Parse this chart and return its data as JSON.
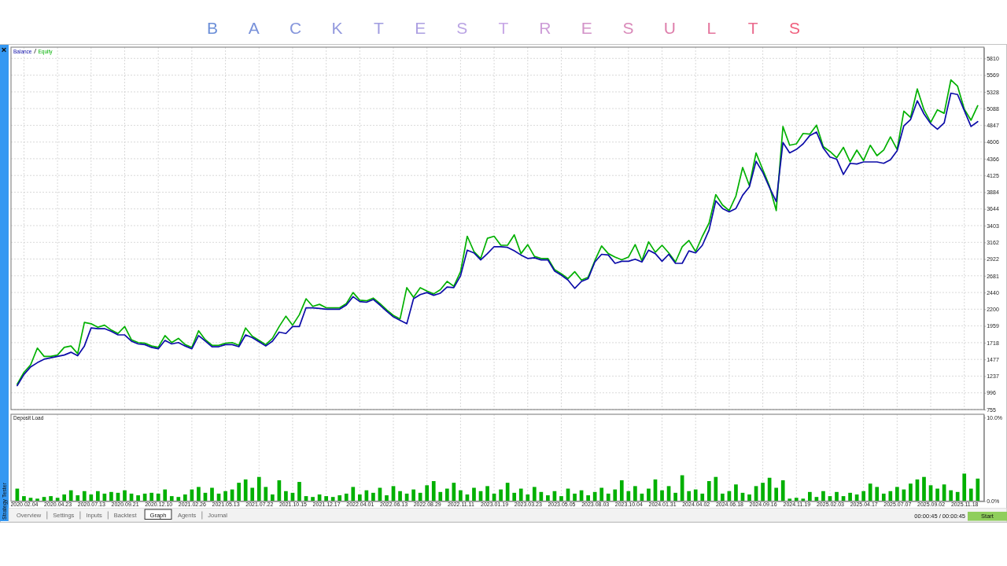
{
  "chart_data": [
    {
      "type": "line",
      "title": "B A C K T E S T R E S U L T S",
      "legend": "top left",
      "grid": true,
      "tick_labels": "y",
      "ylim": [
        755,
        5972
      ],
      "yticks": [
        755,
        996,
        1237,
        1477,
        1718,
        1959,
        2200,
        2440,
        2681,
        2922,
        3162,
        3403,
        3644,
        3884,
        4125,
        4366,
        4606,
        4847,
        5088,
        5328,
        5569,
        5810
      ],
      "categories": [
        null,
        "2020.02.04",
        null,
        null,
        null,
        null,
        "2020.04.23",
        null,
        null,
        null,
        null,
        "2020.07.13",
        null,
        null,
        null,
        null,
        "2020.09.21",
        null,
        null,
        null,
        null,
        "2020.12.10",
        null,
        null,
        null,
        null,
        "2021.02.26",
        null,
        null,
        null,
        null,
        "2021.05.13",
        null,
        null,
        null,
        null,
        "2021.07.22",
        null,
        null,
        null,
        null,
        "2021.10.15",
        null,
        null,
        null,
        null,
        "2021.12.17",
        null,
        null,
        null,
        null,
        "2022.04.01",
        null,
        null,
        null,
        null,
        "2022.06.13",
        null,
        null,
        null,
        null,
        "2022.08.29",
        null,
        null,
        null,
        null,
        "2022.11.11",
        null,
        null,
        null,
        null,
        "2023.01.19",
        null,
        null,
        null,
        null,
        "2023.03.23",
        null,
        null,
        null,
        null,
        "2023.05.05",
        null,
        null,
        null,
        null,
        "2023.08.03",
        null,
        null,
        null,
        null,
        "2023.10.04",
        null,
        null,
        null,
        null,
        "2024.01.31",
        null,
        null,
        null,
        null,
        "2024.04.02",
        null,
        null,
        null,
        null,
        "2024.06.18",
        null,
        null,
        null,
        null,
        "2024.09.16",
        null,
        null,
        null,
        null,
        "2024.11.19",
        null,
        null,
        null,
        null,
        "2025.02.03",
        null,
        null,
        null,
        null,
        "2025.04.17",
        null,
        null,
        null,
        null,
        "2025.07.07",
        null,
        null,
        null,
        null,
        "2025.09.02",
        null,
        null,
        null,
        null,
        "2025.11.18",
        null,
        null
      ],
      "series": [
        {
          "name": "Balance",
          "color": "#0c0ca8",
          "values": [
            1100,
            1260,
            1370,
            1430,
            1480,
            1500,
            1520,
            1540,
            1580,
            1530,
            1670,
            1930,
            1920,
            1920,
            1880,
            1830,
            1830,
            1740,
            1700,
            1690,
            1650,
            1630,
            1750,
            1700,
            1720,
            1670,
            1630,
            1820,
            1740,
            1660,
            1660,
            1690,
            1690,
            1660,
            1830,
            1790,
            1730,
            1670,
            1740,
            1870,
            1850,
            1950,
            1950,
            2220,
            2220,
            2210,
            2200,
            2200,
            2200,
            2260,
            2380,
            2310,
            2300,
            2340,
            2260,
            2170,
            2090,
            2040,
            1990,
            2350,
            2410,
            2440,
            2400,
            2430,
            2520,
            2510,
            2680,
            3050,
            3010,
            2910,
            3000,
            3100,
            3100,
            3090,
            3040,
            2980,
            2930,
            2940,
            2910,
            2910,
            2750,
            2690,
            2620,
            2500,
            2600,
            2640,
            2880,
            2990,
            2980,
            2860,
            2890,
            2890,
            2920,
            2880,
            3050,
            3000,
            2890,
            2990,
            2860,
            2860,
            3040,
            3010,
            3120,
            3340,
            3760,
            3650,
            3600,
            3650,
            3840,
            3960,
            4330,
            4170,
            3950,
            3750,
            4600,
            4450,
            4500,
            4580,
            4700,
            4750,
            4520,
            4390,
            4360,
            4140,
            4300,
            4290,
            4320,
            4320,
            4320,
            4300,
            4350,
            4480,
            4840,
            4930,
            5200,
            5010,
            4870,
            4790,
            4880,
            5310,
            5290,
            5060,
            4830,
            4900
          ]
        },
        {
          "name": "Equity",
          "color": "#00b000",
          "values": [
            1120,
            1290,
            1400,
            1640,
            1520,
            1520,
            1540,
            1650,
            1670,
            1560,
            2010,
            1990,
            1940,
            1970,
            1900,
            1850,
            1950,
            1760,
            1720,
            1710,
            1670,
            1650,
            1820,
            1720,
            1780,
            1690,
            1650,
            1890,
            1760,
            1680,
            1680,
            1710,
            1720,
            1680,
            1930,
            1810,
            1750,
            1690,
            1780,
            1950,
            2100,
            1970,
            2120,
            2350,
            2240,
            2270,
            2220,
            2220,
            2220,
            2280,
            2440,
            2330,
            2320,
            2360,
            2280,
            2190,
            2110,
            2060,
            2510,
            2370,
            2510,
            2460,
            2420,
            2480,
            2600,
            2530,
            2740,
            3250,
            3030,
            2930,
            3220,
            3250,
            3120,
            3120,
            3270,
            3000,
            3130,
            2960,
            2930,
            2930,
            2770,
            2710,
            2640,
            2740,
            2620,
            2660,
            2900,
            3110,
            3000,
            2950,
            2910,
            2950,
            3130,
            2900,
            3170,
            3020,
            3120,
            3010,
            2880,
            3100,
            3190,
            3030,
            3250,
            3440,
            3850,
            3700,
            3620,
            3830,
            4240,
            3980,
            4450,
            4210,
            3970,
            3620,
            4830,
            4560,
            4580,
            4730,
            4720,
            4850,
            4540,
            4470,
            4380,
            4530,
            4320,
            4490,
            4340,
            4560,
            4410,
            4490,
            4680,
            4500,
            5050,
            4960,
            5370,
            5070,
            4890,
            5070,
            5020,
            5500,
            5410,
            5080,
            4920,
            5130
          ]
        }
      ]
    },
    {
      "type": "bar",
      "title": "Deposit Load",
      "color": "#00b000",
      "grid": "x",
      "ylim": [
        0,
        10.4
      ],
      "yticks": [
        {
          "value": 10,
          "label": "10.0%"
        },
        {
          "value": 0,
          "label": "0.0%"
        }
      ],
      "categories": [
        null,
        "2020.02.04",
        null,
        null,
        null,
        null,
        "2020.04.23",
        null,
        null,
        null,
        null,
        "2020.07.13",
        null,
        null,
        null,
        null,
        "2020.09.21",
        null,
        null,
        null,
        null,
        "2020.12.10",
        null,
        null,
        null,
        null,
        "2021.02.26",
        null,
        null,
        null,
        null,
        "2021.05.13",
        null,
        null,
        null,
        null,
        "2021.07.22",
        null,
        null,
        null,
        null,
        "2021.10.15",
        null,
        null,
        null,
        null,
        "2021.12.17",
        null,
        null,
        null,
        null,
        "2022.04.01",
        null,
        null,
        null,
        null,
        "2022.06.13",
        null,
        null,
        null,
        null,
        "2022.08.29",
        null,
        null,
        null,
        null,
        "2022.11.11",
        null,
        null,
        null,
        null,
        "2023.01.19",
        null,
        null,
        null,
        null,
        "2023.03.23",
        null,
        null,
        null,
        null,
        "2023.05.05",
        null,
        null,
        null,
        null,
        "2023.08.03",
        null,
        null,
        null,
        null,
        "2023.10.04",
        null,
        null,
        null,
        null,
        "2024.01.31",
        null,
        null,
        null,
        null,
        "2024.04.02",
        null,
        null,
        null,
        null,
        "2024.06.18",
        null,
        null,
        null,
        null,
        "2024.09.16",
        null,
        null,
        null,
        null,
        "2024.11.19",
        null,
        null,
        null,
        null,
        "2025.02.03",
        null,
        null,
        null,
        null,
        "2025.04.17",
        null,
        null,
        null,
        null,
        "2025.07.07",
        null,
        null,
        null,
        null,
        "2025.09.02",
        null,
        null,
        null,
        null,
        "2025.11.18",
        null,
        null
      ],
      "values": [
        1.5,
        0.6,
        0.4,
        0.3,
        0.5,
        0.6,
        0.4,
        0.8,
        1.3,
        0.7,
        1.2,
        0.8,
        1.2,
        0.9,
        1.1,
        1.0,
        1.3,
        0.9,
        0.7,
        0.9,
        1.0,
        0.9,
        1.4,
        0.6,
        0.5,
        0.8,
        1.4,
        1.7,
        1.0,
        1.6,
        0.9,
        1.2,
        1.4,
        2.2,
        2.6,
        1.6,
        2.9,
        1.7,
        0.8,
        2.5,
        1.2,
        1.0,
        2.3,
        0.6,
        0.5,
        0.8,
        0.6,
        0.5,
        0.7,
        0.9,
        1.7,
        0.8,
        1.3,
        1.0,
        1.6,
        0.7,
        1.8,
        1.2,
        0.9,
        1.4,
        1.0,
        1.9,
        2.4,
        1.1,
        1.5,
        2.2,
        1.3,
        0.8,
        1.6,
        1.2,
        1.8,
        0.9,
        1.4,
        2.2,
        1.0,
        1.5,
        0.8,
        1.7,
        1.1,
        0.7,
        1.2,
        0.6,
        1.5,
        0.9,
        1.3,
        0.7,
        1.1,
        1.6,
        0.9,
        1.4,
        2.5,
        1.2,
        1.8,
        0.9,
        1.5,
        2.6,
        1.3,
        1.8,
        1.0,
        3.1,
        1.2,
        1.4,
        0.9,
        2.4,
        2.9,
        0.9,
        1.2,
        2.0,
        1.0,
        0.8,
        1.8,
        2.2,
        2.8,
        1.6,
        2.5,
        0.3,
        0.4,
        0.3,
        1.1,
        0.5,
        1.2,
        0.6,
        1.1,
        0.6,
        1.0,
        0.8,
        1.2,
        2.1,
        1.7,
        0.9,
        1.2,
        1.7,
        1.4,
        2.1,
        2.6,
        2.9,
        1.9,
        1.5,
        2.0,
        1.3,
        1.1,
        3.3,
        1.5,
        2.7
      ]
    },
    {
      "type": "other",
      "annotations": [
        "Strategy Tester",
        "Overview",
        "Settings",
        "Inputs",
        "Backtest",
        "Graph",
        "Agents",
        "Journal",
        "00:00:45 / 00:00:45",
        "Start"
      ]
    }
  ]
}
